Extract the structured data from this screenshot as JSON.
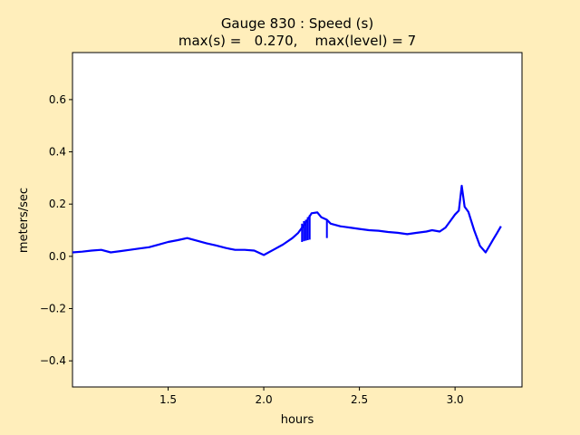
{
  "chart_data": {
    "type": "line",
    "title_line1": "Gauge 830 : Speed (s)",
    "title_line2": "max(s) =   0.270,    max(level) = 7",
    "xlabel": "hours",
    "ylabel": "meters/sec",
    "xlim": [
      1.0,
      3.35
    ],
    "ylim": [
      -0.5,
      0.78
    ],
    "xticks": [
      1.5,
      2.0,
      2.5,
      3.0
    ],
    "xtick_labels": [
      "1.5",
      "2.0",
      "2.5",
      "3.0"
    ],
    "yticks": [
      -0.4,
      -0.2,
      0.0,
      0.2,
      0.4,
      0.6
    ],
    "ytick_labels": [
      "−0.4",
      "−0.2",
      "0.0",
      "0.2",
      "0.4",
      "0.6"
    ],
    "grid": false,
    "colors": {
      "line": "#0000ff",
      "background": "#ffeebb",
      "axes_bg": "#ffffff"
    },
    "series": [
      {
        "x": [
          1.0,
          1.05,
          1.1,
          1.15,
          1.2,
          1.25,
          1.3,
          1.35,
          1.4,
          1.45,
          1.5,
          1.55,
          1.6,
          1.65,
          1.7,
          1.75,
          1.8,
          1.85,
          1.9,
          1.95,
          2.0,
          2.05,
          2.1,
          2.15,
          2.18,
          2.2,
          2.22,
          2.25,
          2.28,
          2.3,
          2.33,
          2.35,
          2.4,
          2.45,
          2.5,
          2.55,
          2.6,
          2.65,
          2.7,
          2.75,
          2.8,
          2.85,
          2.88,
          2.92,
          2.95,
          2.98,
          3.0,
          3.02,
          3.035,
          3.05,
          3.07,
          3.1,
          3.13,
          3.16,
          3.18,
          3.2,
          3.22,
          3.24
        ],
        "values": [
          0.015,
          0.018,
          0.022,
          0.025,
          0.015,
          0.02,
          0.025,
          0.03,
          0.035,
          0.045,
          0.055,
          0.062,
          0.07,
          0.06,
          0.05,
          0.042,
          0.032,
          0.025,
          0.025,
          0.022,
          0.005,
          0.025,
          0.045,
          0.07,
          0.09,
          0.11,
          0.13,
          0.165,
          0.168,
          0.15,
          0.14,
          0.125,
          0.115,
          0.11,
          0.105,
          0.1,
          0.098,
          0.093,
          0.09,
          0.085,
          0.09,
          0.095,
          0.1,
          0.095,
          0.11,
          0.14,
          0.16,
          0.175,
          0.27,
          0.19,
          0.17,
          0.1,
          0.04,
          0.015,
          0.04,
          0.065,
          0.09,
          0.115
        ]
      }
    ],
    "dropouts": [
      {
        "x": 2.2,
        "low": 0.055,
        "high": 0.125
      },
      {
        "x": 2.21,
        "low": 0.058,
        "high": 0.135
      },
      {
        "x": 2.22,
        "low": 0.06,
        "high": 0.14
      },
      {
        "x": 2.23,
        "low": 0.062,
        "high": 0.15
      },
      {
        "x": 2.24,
        "low": 0.064,
        "high": 0.158
      },
      {
        "x": 2.33,
        "low": 0.07,
        "high": 0.14
      }
    ]
  }
}
